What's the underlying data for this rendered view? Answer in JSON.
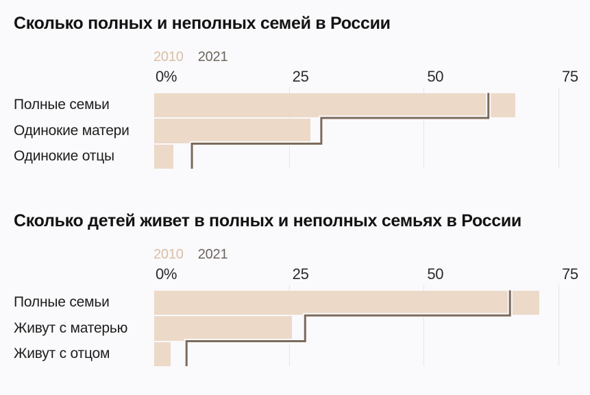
{
  "colors": {
    "background": "#faf9fb",
    "bar_2010": "#ecd9c8",
    "line_2021": "#7b6a5b",
    "line_casing": "#faf9fb",
    "gridline": "#e6e4e8",
    "legend_2010_text": "#d9bfa4",
    "legend_2021_text": "#6b655e",
    "title_text": "#131313",
    "label_text": "#1d1d1d",
    "tick_text": "#29292b"
  },
  "chart_data": [
    {
      "type": "bar",
      "orientation": "horizontal",
      "title": "Сколько полных и неполных семей в России",
      "categories": [
        "Полные семьи",
        "Одинокие матери",
        "Одинокие отцы"
      ],
      "series": [
        {
          "name": "2010",
          "style": "filled-bar",
          "values": [
            67,
            29,
            3.5
          ]
        },
        {
          "name": "2021",
          "style": "step-outline",
          "values": [
            62,
            31,
            7
          ]
        }
      ],
      "unit": "percent",
      "xlim": [
        0,
        75
      ],
      "x_ticks": [
        {
          "value": 0,
          "label": "0%"
        },
        {
          "value": 25,
          "label": "25"
        },
        {
          "value": 50,
          "label": "50"
        },
        {
          "value": 75,
          "label": "75"
        }
      ],
      "grid": "vertical",
      "legend_position": "top"
    },
    {
      "type": "bar",
      "orientation": "horizontal",
      "title": "Сколько детей живет в полных и неполных семьях в России",
      "categories": [
        "Полные семьи",
        "Живут с матерью",
        "Живут с отцом"
      ],
      "series": [
        {
          "name": "2010",
          "style": "filled-bar",
          "values": [
            71.5,
            25.5,
            3
          ]
        },
        {
          "name": "2021",
          "style": "step-outline",
          "values": [
            66,
            28,
            6
          ]
        }
      ],
      "unit": "percent",
      "xlim": [
        0,
        75
      ],
      "x_ticks": [
        {
          "value": 0,
          "label": "0%"
        },
        {
          "value": 25,
          "label": "25"
        },
        {
          "value": 50,
          "label": "50"
        },
        {
          "value": 75,
          "label": "75"
        }
      ],
      "grid": "vertical",
      "legend_position": "top"
    }
  ]
}
